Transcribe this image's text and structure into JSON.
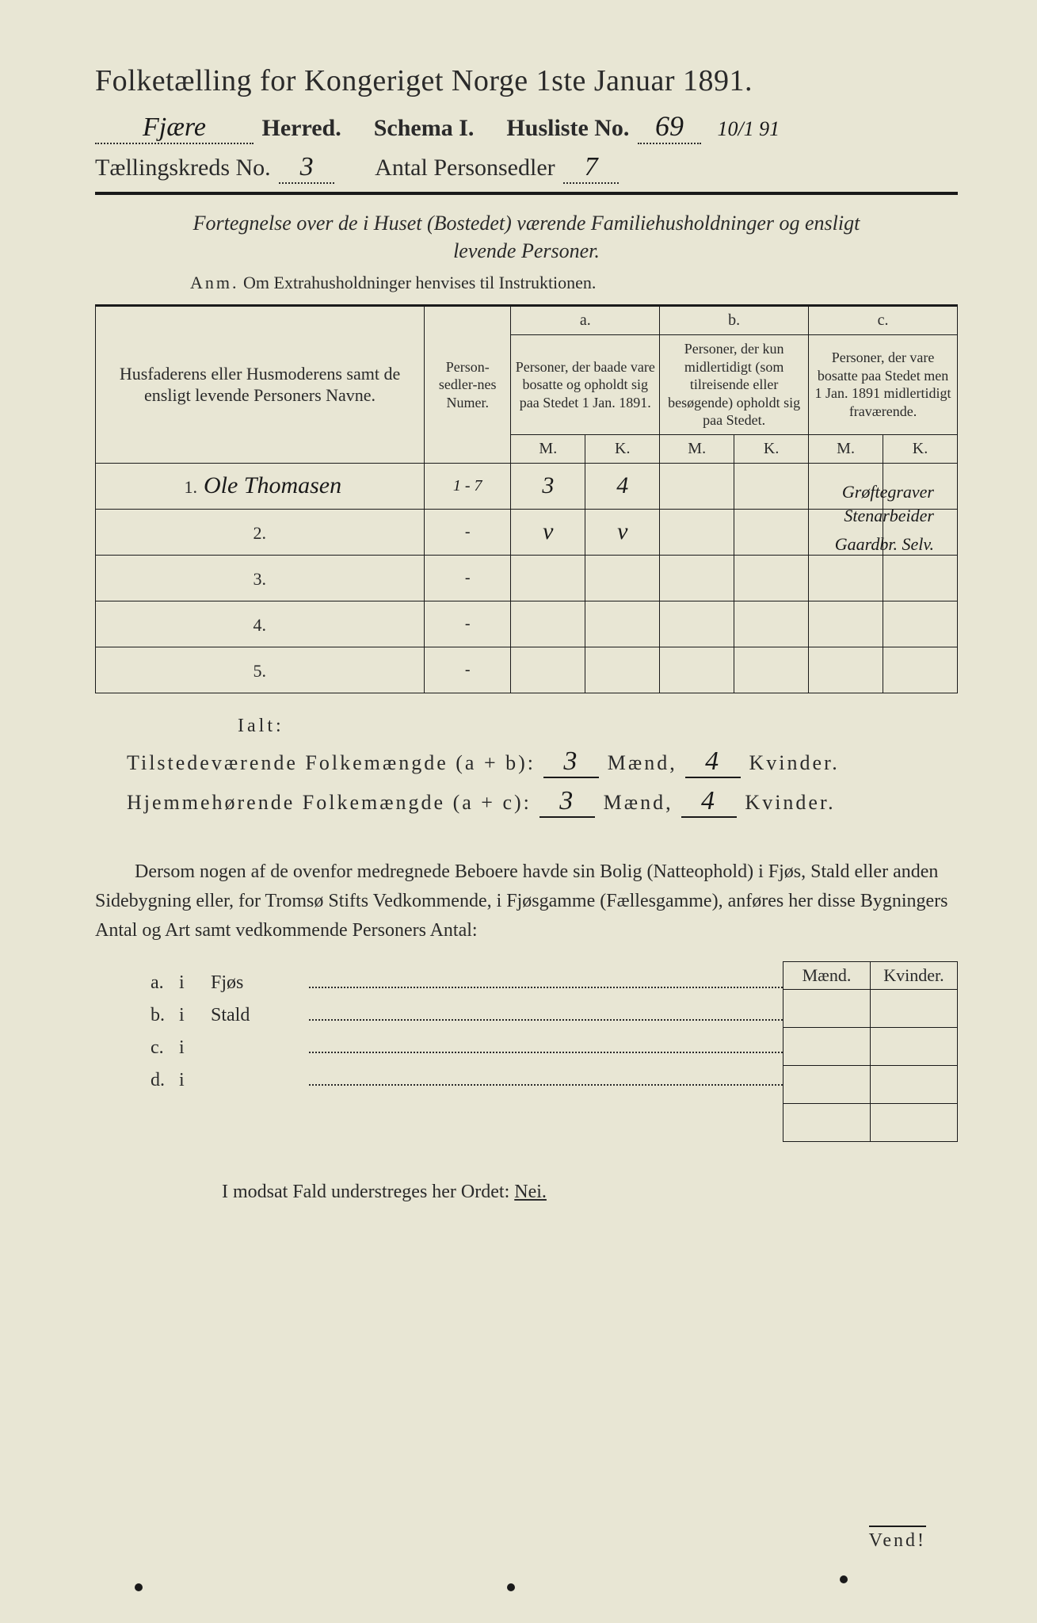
{
  "title": {
    "main": "Folketælling for Kongeriget Norge 1ste Januar 1891."
  },
  "header": {
    "herred_value": "Fjære",
    "herred_label": "Herred.",
    "schema_label": "Schema I.",
    "husliste_label": "Husliste No.",
    "husliste_no": "69",
    "margin_date": "10/1 91",
    "kreds_label": "Tællingskreds No.",
    "kreds_no": "3",
    "antal_label": "Antal Personsedler",
    "antal_value": "7"
  },
  "description": {
    "line1": "Fortegnelse over de i Huset (Bostedet) værende Familiehusholdninger og ensligt",
    "line2": "levende Personer.",
    "anm_label": "Anm.",
    "anm_text": "Om Extrahusholdninger henvises til Instruktionen."
  },
  "table": {
    "col_name": "Husfaderens eller Husmoderens samt de ensligt levende Personers Navne.",
    "col_num": "Person-sedler-nes Numer.",
    "abc": {
      "a": "a.",
      "b": "b.",
      "c": "c."
    },
    "col_a": "Personer, der baade vare bosatte og opholdt sig paa Stedet 1 Jan. 1891.",
    "col_b": "Personer, der kun midlertidigt (som tilreisende eller besøgende) opholdt sig paa Stedet.",
    "col_c": "Personer, der vare bosatte paa Stedet men 1 Jan. 1891 midlertidigt fraværende.",
    "m": "M.",
    "k": "K.",
    "rows": [
      {
        "n": "1.",
        "name": "Ole Thomasen",
        "num": "1 - 7",
        "a_m": "3",
        "a_k": "4",
        "b_m": "",
        "b_k": "",
        "c_m": "",
        "c_k": ""
      },
      {
        "n": "2.",
        "name": "",
        "num": "-",
        "a_m": "v",
        "a_k": "v",
        "b_m": "",
        "b_k": "",
        "c_m": "",
        "c_k": ""
      },
      {
        "n": "3.",
        "name": "",
        "num": "-",
        "a_m": "",
        "a_k": "",
        "b_m": "",
        "b_k": "",
        "c_m": "",
        "c_k": ""
      },
      {
        "n": "4.",
        "name": "",
        "num": "-",
        "a_m": "",
        "a_k": "",
        "b_m": "",
        "b_k": "",
        "c_m": "",
        "c_k": ""
      },
      {
        "n": "5.",
        "name": "",
        "num": "-",
        "a_m": "",
        "a_k": "",
        "b_m": "",
        "b_k": "",
        "c_m": "",
        "c_k": ""
      }
    ],
    "side_notes": [
      "Grøftegraver",
      "Stenarbeider",
      "Gaardbr. Selv."
    ]
  },
  "totals": {
    "ialt": "Ialt:",
    "row1_label": "Tilstedeværende Folkemængde (a + b):",
    "row2_label": "Hjemmehørende Folkemængde (a + c):",
    "maend": "Mænd,",
    "kvinder": "Kvinder.",
    "r1_m": "3",
    "r1_k": "4",
    "r2_m": "3",
    "r2_k": "4"
  },
  "paragraph": "Dersom nogen af de ovenfor medregnede Beboere havde sin Bolig (Natteophold) i Fjøs, Stald eller anden Sidebygning eller, for Tromsø Stifts Vedkommende, i Fjøsgamme (Fællesgamme), anføres her disse Bygningers Antal og Art samt vedkommende Personers Antal:",
  "sub": {
    "mk_m": "Mænd.",
    "mk_k": "Kvinder.",
    "rows": [
      {
        "k": "a.",
        "i": "i",
        "label": "Fjøs"
      },
      {
        "k": "b.",
        "i": "i",
        "label": "Stald"
      },
      {
        "k": "c.",
        "i": "i",
        "label": ""
      },
      {
        "k": "d.",
        "i": "i",
        "label": ""
      }
    ]
  },
  "nei_line": {
    "pre": "I modsat Fald understreges her Ordet:",
    "word": "Nei."
  },
  "vend": "Vend!",
  "colors": {
    "paper": "#e8e6d4",
    "ink": "#2a2a2a",
    "rule": "#1a1a1a"
  }
}
